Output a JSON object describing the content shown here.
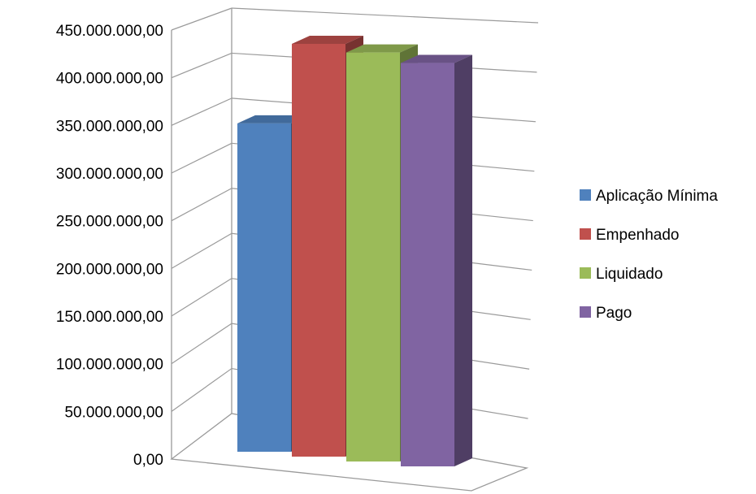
{
  "chart_data": {
    "type": "bar",
    "title": "",
    "xlabel": "",
    "ylabel": "",
    "ylim": [
      0,
      450000000
    ],
    "yticks": [
      0,
      50000000,
      100000000,
      150000000,
      200000000,
      250000000,
      300000000,
      350000000,
      400000000,
      450000000
    ],
    "ytick_labels": [
      "0,00",
      "50.000.000,00",
      "100.000.000,00",
      "150.000.000,00",
      "200.000.000,00",
      "250.000.000,00",
      "300.000.000,00",
      "350.000.000,00",
      "400.000.000,00",
      "450.000.000,00"
    ],
    "grid": true,
    "three_d": true,
    "legend_position": "right",
    "series": [
      {
        "name": "Aplicação Mínima",
        "value": 350000000,
        "color": "#4F81BD"
      },
      {
        "name": "Empenhado",
        "value": 440000000,
        "color": "#C0504D"
      },
      {
        "name": "Liquidado",
        "value": 436000000,
        "color": "#9BBB59"
      },
      {
        "name": "Pago",
        "value": 430000000,
        "color": "#8064A2"
      }
    ]
  }
}
